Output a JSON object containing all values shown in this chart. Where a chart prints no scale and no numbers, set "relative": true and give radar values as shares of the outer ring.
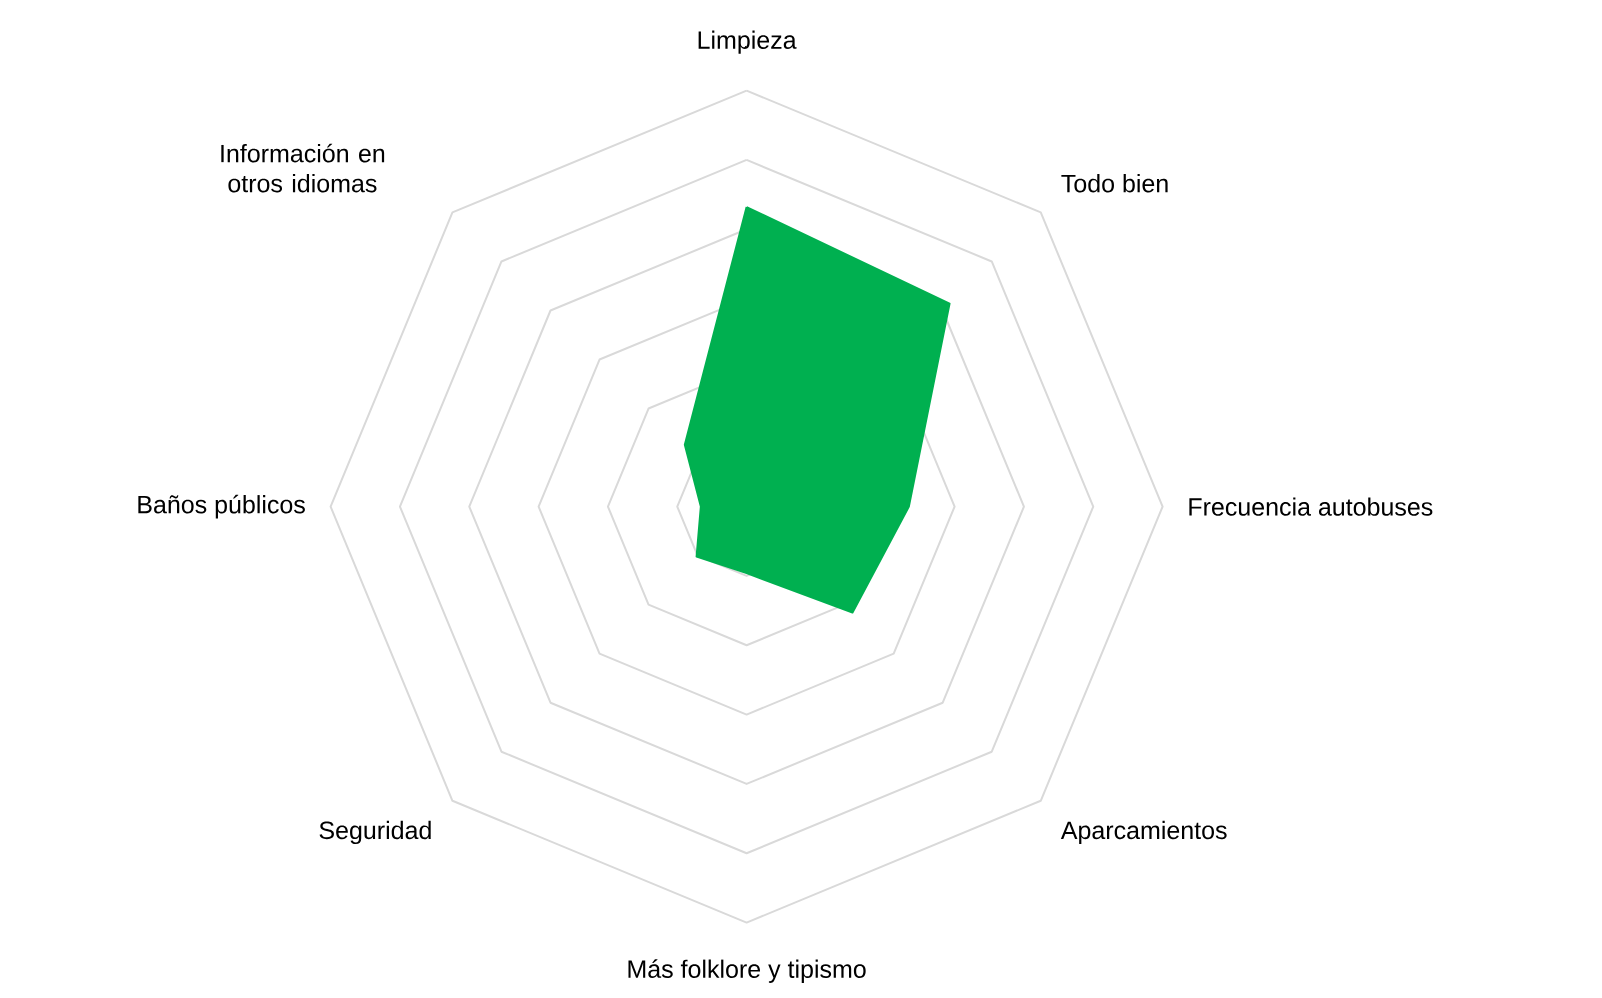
{
  "chart_data": {
    "type": "radar",
    "relative": true,
    "grid": true,
    "categories": [
      "Limpieza",
      "Todo bien",
      "Frecuencia autobuses",
      "Aparcamientos",
      "Más folklore y tipismo",
      "Seguridad",
      "Baños públicos",
      "Información en otros idiomas"
    ],
    "series": [
      {
        "color": "#00b050",
        "values": [
          0.72,
          0.69,
          0.39,
          0.36,
          0.16,
          0.17,
          0.11,
          0.21
        ]
      }
    ]
  }
}
